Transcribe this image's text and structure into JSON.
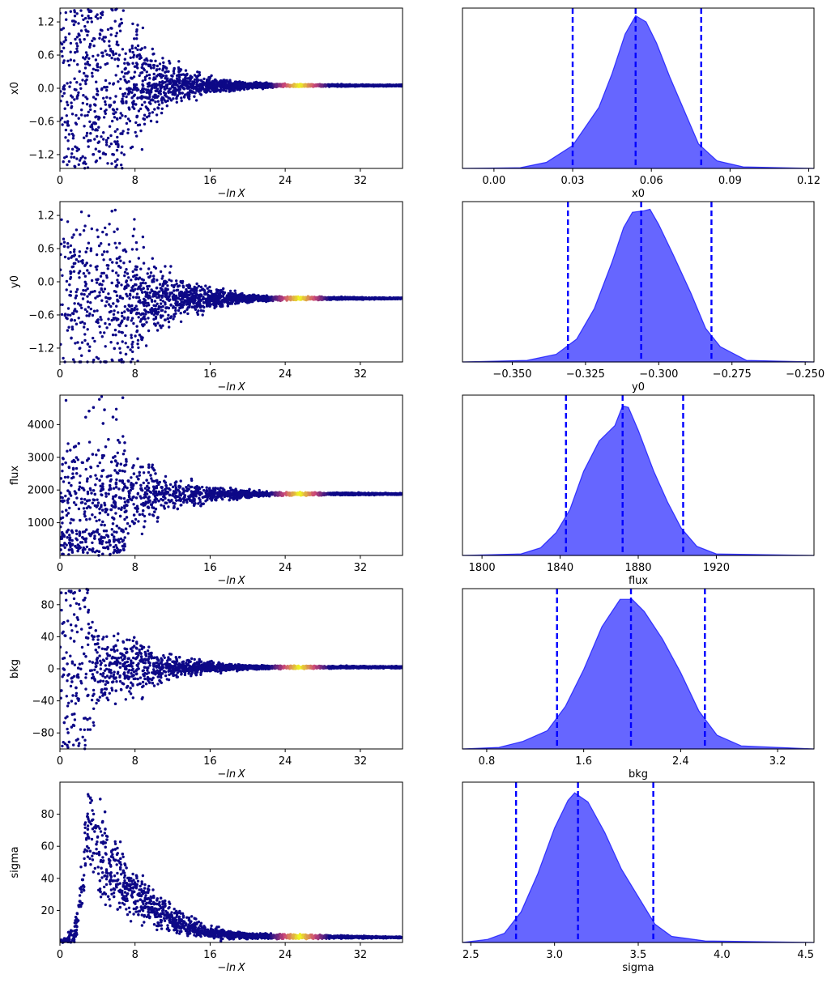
{
  "figure": {
    "trace_xlabel": "−ln X",
    "colors": {
      "trace_low": "#0d0887",
      "trace_mid": "#cc4778",
      "trace_high": "#f0f921",
      "posterior_fill": "#0000ff",
      "quantile_line": "#0000ff"
    }
  },
  "chart_data": [
    {
      "type": "scatter",
      "panel": "trace",
      "parameter": "x0",
      "ylabel": "x0",
      "xlabel": "−ln X",
      "xlim": [
        0,
        36.5
      ],
      "ylim": [
        -1.45,
        1.45
      ],
      "xticks": [
        0,
        8,
        16,
        24,
        32
      ],
      "yticks": [
        1.2,
        0.6,
        0.0,
        -0.6,
        -1.2
      ],
      "yticklabels": [
        "1.2",
        "0.6",
        "0.0",
        "−0.6",
        "−1.2"
      ],
      "converged_value": 0.05,
      "spread": [
        {
          "x": 0,
          "y": 1.45
        },
        {
          "x": 6,
          "y": 1.45
        },
        {
          "x": 8,
          "y": 0.95
        },
        {
          "x": 10,
          "y": 0.5
        },
        {
          "x": 12,
          "y": 0.3
        },
        {
          "x": 16,
          "y": 0.12
        },
        {
          "x": 20,
          "y": 0.05
        },
        {
          "x": 24,
          "y": 0.02
        },
        {
          "x": 36.5,
          "y": 0.01
        }
      ],
      "peak_weight_x": 25.5
    },
    {
      "type": "area",
      "panel": "posterior",
      "parameter": "x0",
      "xlabel": "x0",
      "xlim": [
        -0.012,
        0.122
      ],
      "xticks": [
        0.0,
        0.03,
        0.06,
        0.09,
        0.12
      ],
      "xticklabels": [
        "0.00",
        "0.03",
        "0.06",
        "0.09",
        "0.12"
      ],
      "density": [
        {
          "x": -0.012,
          "y": 0
        },
        {
          "x": 0.01,
          "y": 0.005
        },
        {
          "x": 0.02,
          "y": 0.04
        },
        {
          "x": 0.03,
          "y": 0.15
        },
        {
          "x": 0.036,
          "y": 0.3
        },
        {
          "x": 0.04,
          "y": 0.4
        },
        {
          "x": 0.045,
          "y": 0.62
        },
        {
          "x": 0.05,
          "y": 0.88
        },
        {
          "x": 0.054,
          "y": 1.0
        },
        {
          "x": 0.058,
          "y": 0.96
        },
        {
          "x": 0.062,
          "y": 0.82
        },
        {
          "x": 0.067,
          "y": 0.6
        },
        {
          "x": 0.072,
          "y": 0.4
        },
        {
          "x": 0.078,
          "y": 0.16
        },
        {
          "x": 0.085,
          "y": 0.05
        },
        {
          "x": 0.095,
          "y": 0.01
        },
        {
          "x": 0.122,
          "y": 0
        }
      ],
      "quantiles": [
        0.03,
        0.054,
        0.079
      ]
    },
    {
      "type": "scatter",
      "panel": "trace",
      "parameter": "y0",
      "ylabel": "y0",
      "xlabel": "−ln X",
      "xlim": [
        0,
        36.5
      ],
      "ylim": [
        -1.45,
        1.45
      ],
      "xticks": [
        0,
        8,
        16,
        24,
        32
      ],
      "yticks": [
        1.2,
        0.6,
        0.0,
        -0.6,
        -1.2
      ],
      "yticklabels": [
        "1.2",
        "0.6",
        "0.0",
        "−0.6",
        "−1.2"
      ],
      "converged_value": -0.3,
      "spread": [
        {
          "x": 0,
          "y": 1.45
        },
        {
          "x": 6,
          "y": 1.45
        },
        {
          "x": 8,
          "y": 1.0
        },
        {
          "x": 10,
          "y": 0.55
        },
        {
          "x": 12,
          "y": 0.35
        },
        {
          "x": 16,
          "y": 0.15
        },
        {
          "x": 20,
          "y": 0.06
        },
        {
          "x": 24,
          "y": 0.025
        },
        {
          "x": 36.5,
          "y": 0.01
        }
      ],
      "peak_weight_x": 25.5
    },
    {
      "type": "area",
      "panel": "posterior",
      "parameter": "y0",
      "xlabel": "y0",
      "xlim": [
        -0.367,
        -0.247
      ],
      "xticks": [
        -0.35,
        -0.325,
        -0.3,
        -0.275,
        -0.25
      ],
      "xticklabels": [
        "−0.350",
        "−0.325",
        "−0.300",
        "−0.275",
        "−0.250"
      ],
      "density": [
        {
          "x": -0.367,
          "y": 0
        },
        {
          "x": -0.345,
          "y": 0.01
        },
        {
          "x": -0.335,
          "y": 0.05
        },
        {
          "x": -0.328,
          "y": 0.15
        },
        {
          "x": -0.322,
          "y": 0.35
        },
        {
          "x": -0.316,
          "y": 0.65
        },
        {
          "x": -0.312,
          "y": 0.88
        },
        {
          "x": -0.309,
          "y": 0.98
        },
        {
          "x": -0.305,
          "y": 0.99
        },
        {
          "x": -0.303,
          "y": 1.0
        },
        {
          "x": -0.3,
          "y": 0.9
        },
        {
          "x": -0.295,
          "y": 0.7
        },
        {
          "x": -0.289,
          "y": 0.45
        },
        {
          "x": -0.284,
          "y": 0.22
        },
        {
          "x": -0.279,
          "y": 0.1
        },
        {
          "x": -0.27,
          "y": 0.01
        },
        {
          "x": -0.247,
          "y": 0
        }
      ],
      "quantiles": [
        -0.331,
        -0.306,
        -0.282
      ]
    },
    {
      "type": "scatter",
      "panel": "trace",
      "parameter": "flux",
      "ylabel": "flux",
      "xlabel": "−ln X",
      "xlim": [
        0,
        36.5
      ],
      "ylim": [
        0,
        4900
      ],
      "xticks": [
        0,
        8,
        16,
        24,
        32
      ],
      "yticks": [
        4000,
        3000,
        2000,
        1000
      ],
      "yticklabels": [
        "4000",
        "3000",
        "2000",
        "1000"
      ],
      "converged_value": 1880,
      "spread": [
        {
          "x": 7,
          "y": 1300
        },
        {
          "x": 8,
          "y": 900
        },
        {
          "x": 10,
          "y": 700
        },
        {
          "x": 12,
          "y": 450
        },
        {
          "x": 16,
          "y": 200
        },
        {
          "x": 20,
          "y": 90
        },
        {
          "x": 24,
          "y": 40
        },
        {
          "x": 36.5,
          "y": 20
        }
      ],
      "early_region": {
        "x_max": 7,
        "y_max": 4900
      },
      "peak_weight_x": 25.5
    },
    {
      "type": "area",
      "panel": "posterior",
      "parameter": "flux",
      "xlabel": "flux",
      "xlim": [
        1790,
        1970
      ],
      "xticks": [
        1800,
        1840,
        1880,
        1920
      ],
      "xticklabels": [
        "1800",
        "1840",
        "1880",
        "1920"
      ],
      "density": [
        {
          "x": 1790,
          "y": 0
        },
        {
          "x": 1820,
          "y": 0.01
        },
        {
          "x": 1830,
          "y": 0.05
        },
        {
          "x": 1838,
          "y": 0.15
        },
        {
          "x": 1845,
          "y": 0.3
        },
        {
          "x": 1852,
          "y": 0.55
        },
        {
          "x": 1860,
          "y": 0.75
        },
        {
          "x": 1868,
          "y": 0.85
        },
        {
          "x": 1872,
          "y": 0.98
        },
        {
          "x": 1875,
          "y": 0.97
        },
        {
          "x": 1880,
          "y": 0.82
        },
        {
          "x": 1888,
          "y": 0.55
        },
        {
          "x": 1895,
          "y": 0.35
        },
        {
          "x": 1902,
          "y": 0.18
        },
        {
          "x": 1910,
          "y": 0.06
        },
        {
          "x": 1920,
          "y": 0.01
        },
        {
          "x": 1970,
          "y": 0
        }
      ],
      "quantiles": [
        1843,
        1872,
        1903
      ]
    },
    {
      "type": "scatter",
      "panel": "trace",
      "parameter": "bkg",
      "ylabel": "bkg",
      "xlabel": "−ln X",
      "xlim": [
        0,
        36.5
      ],
      "ylim": [
        -100,
        100
      ],
      "xticks": [
        0,
        8,
        16,
        24,
        32
      ],
      "yticks": [
        80,
        40,
        0,
        -40,
        -80
      ],
      "yticklabels": [
        "80",
        "40",
        "0",
        "−40",
        "−80"
      ],
      "converged_value": 2,
      "spread": [
        {
          "x": 0,
          "y": 100
        },
        {
          "x": 3,
          "y": 100
        },
        {
          "x": 4,
          "y": 45
        },
        {
          "x": 6,
          "y": 35
        },
        {
          "x": 8,
          "y": 30
        },
        {
          "x": 12,
          "y": 12
        },
        {
          "x": 16,
          "y": 5
        },
        {
          "x": 20,
          "y": 2.5
        },
        {
          "x": 24,
          "y": 1.5
        },
        {
          "x": 36.5,
          "y": 1
        }
      ],
      "peak_weight_x": 25.5
    },
    {
      "type": "area",
      "panel": "posterior",
      "parameter": "bkg",
      "xlabel": "bkg",
      "xlim": [
        0.6,
        3.5
      ],
      "xticks": [
        0.8,
        1.6,
        2.4,
        3.2
      ],
      "xticklabels": [
        "0.8",
        "1.6",
        "2.4",
        "3.2"
      ],
      "density": [
        {
          "x": 0.6,
          "y": 0
        },
        {
          "x": 0.9,
          "y": 0.01
        },
        {
          "x": 1.1,
          "y": 0.05
        },
        {
          "x": 1.3,
          "y": 0.12
        },
        {
          "x": 1.45,
          "y": 0.28
        },
        {
          "x": 1.6,
          "y": 0.52
        },
        {
          "x": 1.75,
          "y": 0.8
        },
        {
          "x": 1.9,
          "y": 0.98
        },
        {
          "x": 2.0,
          "y": 0.98
        },
        {
          "x": 2.1,
          "y": 0.9
        },
        {
          "x": 2.25,
          "y": 0.72
        },
        {
          "x": 2.4,
          "y": 0.5
        },
        {
          "x": 2.55,
          "y": 0.25
        },
        {
          "x": 2.7,
          "y": 0.09
        },
        {
          "x": 2.9,
          "y": 0.02
        },
        {
          "x": 3.5,
          "y": 0
        }
      ],
      "quantiles": [
        1.38,
        1.99,
        2.6
      ]
    },
    {
      "type": "scatter",
      "panel": "trace",
      "parameter": "sigma",
      "ylabel": "sigma",
      "xlabel": "−ln X",
      "xlim": [
        0,
        36.5
      ],
      "ylim": [
        0,
        100
      ],
      "xticks": [
        0,
        8,
        16,
        24,
        32
      ],
      "yticks": [
        80,
        60,
        40,
        20
      ],
      "yticklabels": [
        "80",
        "60",
        "40",
        "20"
      ],
      "converged_value": 3.1,
      "center": [
        {
          "x": 0,
          "y": 1
        },
        {
          "x": 1.5,
          "y": 2
        },
        {
          "x": 2.5,
          "y": 40
        },
        {
          "x": 3,
          "y": 75
        },
        {
          "x": 4,
          "y": 58
        },
        {
          "x": 6,
          "y": 40
        },
        {
          "x": 8,
          "y": 30
        },
        {
          "x": 12,
          "y": 14
        },
        {
          "x": 16,
          "y": 6
        },
        {
          "x": 20,
          "y": 4
        },
        {
          "x": 36.5,
          "y": 3.1
        }
      ],
      "spread": [
        {
          "x": 0,
          "y": 0.5
        },
        {
          "x": 2,
          "y": 6
        },
        {
          "x": 3,
          "y": 25
        },
        {
          "x": 5,
          "y": 20
        },
        {
          "x": 8,
          "y": 12
        },
        {
          "x": 12,
          "y": 7
        },
        {
          "x": 16,
          "y": 3
        },
        {
          "x": 20,
          "y": 1.5
        },
        {
          "x": 36.5,
          "y": 0.3
        }
      ],
      "peak_weight_x": 25.5
    },
    {
      "type": "area",
      "panel": "posterior",
      "parameter": "sigma",
      "xlabel": "sigma",
      "xlim": [
        2.45,
        4.55
      ],
      "xticks": [
        2.5,
        3.0,
        3.5,
        4.0,
        4.5
      ],
      "xticklabels": [
        "2.5",
        "3.0",
        "3.5",
        "4.0",
        "4.5"
      ],
      "density": [
        {
          "x": 2.45,
          "y": 0
        },
        {
          "x": 2.6,
          "y": 0.02
        },
        {
          "x": 2.7,
          "y": 0.06
        },
        {
          "x": 2.8,
          "y": 0.2
        },
        {
          "x": 2.9,
          "y": 0.45
        },
        {
          "x": 3.0,
          "y": 0.75
        },
        {
          "x": 3.08,
          "y": 0.93
        },
        {
          "x": 3.12,
          "y": 0.98
        },
        {
          "x": 3.2,
          "y": 0.92
        },
        {
          "x": 3.3,
          "y": 0.72
        },
        {
          "x": 3.4,
          "y": 0.48
        },
        {
          "x": 3.5,
          "y": 0.3
        },
        {
          "x": 3.6,
          "y": 0.12
        },
        {
          "x": 3.7,
          "y": 0.04
        },
        {
          "x": 3.9,
          "y": 0.01
        },
        {
          "x": 4.55,
          "y": 0
        }
      ],
      "quantiles": [
        2.77,
        3.14,
        3.59
      ]
    }
  ]
}
